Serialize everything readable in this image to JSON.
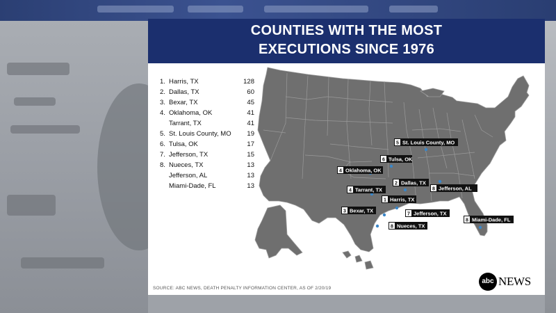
{
  "title": {
    "line1": "COUNTIES WITH THE MOST",
    "line2": "EXECUTIONS SINCE 1976"
  },
  "rankings": [
    {
      "rank": "1.",
      "county": "Harris, TX",
      "count": "128"
    },
    {
      "rank": "2.",
      "county": "Dallas, TX",
      "count": "60"
    },
    {
      "rank": "3.",
      "county": "Bexar, TX",
      "count": "45"
    },
    {
      "rank": "4.",
      "county": "Oklahoma, OK",
      "count": "41"
    },
    {
      "rank": "",
      "county": "Tarrant, TX",
      "count": "41"
    },
    {
      "rank": "5.",
      "county": "St. Louis County, MO",
      "count": "19"
    },
    {
      "rank": "6.",
      "county": "Tulsa, OK",
      "count": "17"
    },
    {
      "rank": "7.",
      "county": "Jefferson, TX",
      "count": "15"
    },
    {
      "rank": "8.",
      "county": "Nueces, TX",
      "count": "13"
    },
    {
      "rank": "",
      "county": "Jefferson, AL",
      "count": "13"
    },
    {
      "rank": "",
      "county": "Miami-Dade, FL",
      "count": "13"
    }
  ],
  "map_labels": [
    {
      "num": "5",
      "text": "St. Louis County, MO"
    },
    {
      "num": "6",
      "text": "Tulsa, OK"
    },
    {
      "num": "4",
      "text": "Oklahoma, OK"
    },
    {
      "num": "2",
      "text": "Dallas, TX"
    },
    {
      "num": "8",
      "text": "Jefferson, AL"
    },
    {
      "num": "4",
      "text": "Tarrant, TX"
    },
    {
      "num": "1",
      "text": "Harris, TX"
    },
    {
      "num": "3",
      "text": "Bexar, TX"
    },
    {
      "num": "7",
      "text": "Jefferson, TX"
    },
    {
      "num": "8",
      "text": "Nueces, TX"
    },
    {
      "num": "8",
      "text": "Miami-Dade, FL"
    }
  ],
  "source": "SOURCE: ABC NEWS, DEATH PENALTY INFORMATION CENTER, AS OF 2/20/19",
  "logo": {
    "mark": "abc",
    "word": "NEWS"
  },
  "colors": {
    "banner": "#1b2f6e",
    "map_fill": "#6f6f6f",
    "label_bg": "#111111",
    "pin": "#3a86c8"
  }
}
